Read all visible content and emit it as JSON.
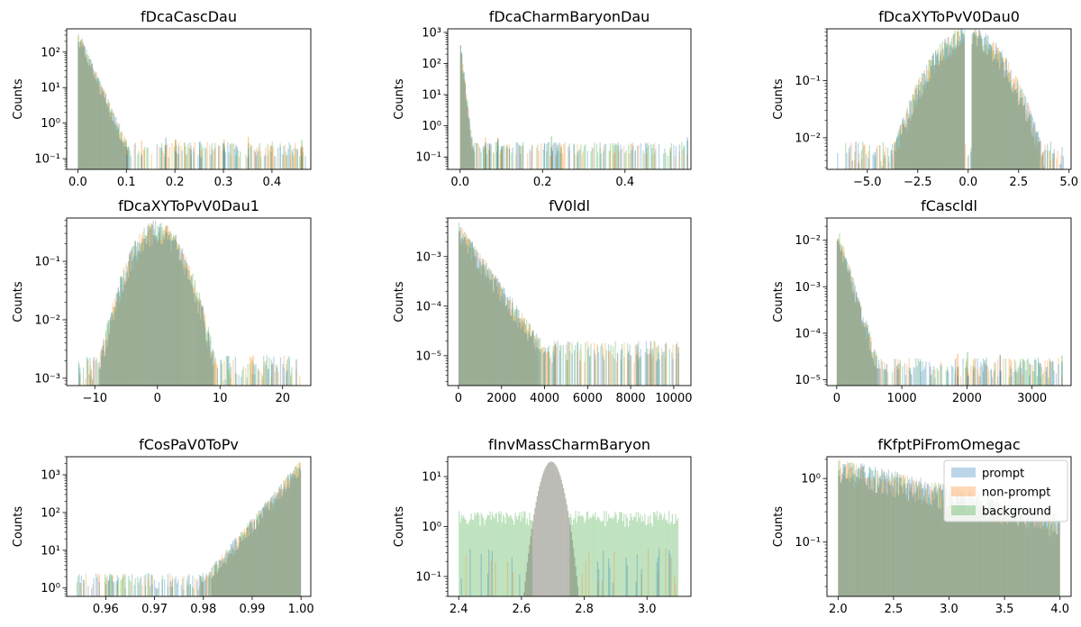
{
  "colors": {
    "prompt": "#1f77b4",
    "non-prompt": "#ff7f0e",
    "background": "#2ca02c",
    "overlap": "#9aab7c"
  },
  "chart_data": [
    {
      "type": "histogram",
      "title": "fDcaCascDau",
      "ylabel": "Counts",
      "yscale": "log",
      "xlim": [
        -0.023,
        0.48
      ],
      "ylim": [
        0.05,
        450
      ],
      "xticks": [
        {
          "v": 0.0,
          "label": "0.0"
        },
        {
          "v": 0.1,
          "label": "0.1"
        },
        {
          "v": 0.2,
          "label": "0.2"
        },
        {
          "v": 0.3,
          "label": "0.3"
        },
        {
          "v": 0.4,
          "label": "0.4"
        }
      ],
      "yticks": [
        {
          "v": 0.1,
          "label": "10⁻¹"
        },
        {
          "v": 1,
          "label": "10⁰"
        },
        {
          "v": 10,
          "label": "10¹"
        },
        {
          "v": 100,
          "label": "10²"
        }
      ],
      "shape": "decay",
      "range": [
        0,
        0.47
      ],
      "peak": 300,
      "decay": 0.014,
      "floor": 0.12,
      "tail": [
        0.1,
        0.13,
        0.18,
        0.2,
        0.25,
        0.3,
        0.35,
        0.46
      ],
      "bins": 200
    },
    {
      "type": "histogram",
      "title": "fDcaCharmBaryonDau",
      "ylabel": "Counts",
      "yscale": "log",
      "xlim": [
        -0.03,
        0.56
      ],
      "ylim": [
        0.04,
        1300
      ],
      "xticks": [
        {
          "v": 0.0,
          "label": "0.0"
        },
        {
          "v": 0.2,
          "label": "0.2"
        },
        {
          "v": 0.4,
          "label": "0.4"
        }
      ],
      "yticks": [
        {
          "v": 0.1,
          "label": "10⁻¹"
        },
        {
          "v": 1,
          "label": "10⁰"
        },
        {
          "v": 10,
          "label": "10¹"
        },
        {
          "v": 100,
          "label": "10²"
        },
        {
          "v": 1000,
          "label": "10³"
        }
      ],
      "shape": "decay",
      "range": [
        0,
        0.55
      ],
      "peak": 450,
      "decay": 0.004,
      "floor": 0.12,
      "tail": [
        0.06,
        0.07,
        0.09,
        0.1,
        0.22,
        0.55
      ],
      "bins": 200
    },
    {
      "type": "histogram",
      "title": "fDcaXYToPvV0Dau0",
      "ylabel": "Counts",
      "yscale": "log",
      "xlim": [
        -7.0,
        5.1
      ],
      "ylim": [
        0.0028,
        0.8
      ],
      "xticks": [
        {
          "v": -5.0,
          "label": "−5.0"
        },
        {
          "v": -2.5,
          "label": "−2.5"
        },
        {
          "v": 0.0,
          "label": "0.0"
        },
        {
          "v": 2.5,
          "label": "2.5"
        },
        {
          "v": 5.0,
          "label": "5.0"
        }
      ],
      "yticks": [
        {
          "v": 0.01,
          "label": "10⁻²"
        },
        {
          "v": 0.1,
          "label": "10⁻¹"
        }
      ],
      "shape": "dip",
      "range": [
        -6.5,
        4.8
      ],
      "peak": 0.6,
      "sigma": 1.2,
      "gap": 0.15,
      "floor": 0.0035,
      "bins": 200
    },
    {
      "type": "histogram",
      "title": "fDcaXYToPvV0Dau1",
      "ylabel": "Counts",
      "yscale": "log",
      "xlim": [
        -14.5,
        24.5
      ],
      "ylim": [
        0.00075,
        0.55
      ],
      "xticks": [
        {
          "v": -10,
          "label": "−10"
        },
        {
          "v": 0,
          "label": "0"
        },
        {
          "v": 10,
          "label": "10"
        },
        {
          "v": 20,
          "label": "20"
        }
      ],
      "yticks": [
        {
          "v": 0.001,
          "label": "10⁻³"
        },
        {
          "v": 0.01,
          "label": "10⁻²"
        },
        {
          "v": 0.1,
          "label": "10⁻¹"
        }
      ],
      "shape": "peak",
      "range": [
        -13,
        23
      ],
      "center": 0,
      "peak": 0.35,
      "sigma": 2.8,
      "floor": 0.001,
      "bins": 200
    },
    {
      "type": "histogram",
      "title": "fV0ldl",
      "ylabel": "Counts",
      "yscale": "log",
      "xlim": [
        -500,
        10800
      ],
      "ylim": [
        2.5e-06,
        0.006
      ],
      "xticks": [
        {
          "v": 0,
          "label": "0"
        },
        {
          "v": 2000,
          "label": "2000"
        },
        {
          "v": 4000,
          "label": "4000"
        },
        {
          "v": 6000,
          "label": "6000"
        },
        {
          "v": 8000,
          "label": "8000"
        },
        {
          "v": 10000,
          "label": "10000"
        }
      ],
      "yticks": [
        {
          "v": 1e-05,
          "label": "10⁻⁵"
        },
        {
          "v": 0.0001,
          "label": "10⁻⁴"
        },
        {
          "v": 0.001,
          "label": "10⁻³"
        }
      ],
      "shape": "decay",
      "range": [
        0,
        10300
      ],
      "peak": 0.0035,
      "decay": 700,
      "floor": 8e-06,
      "bins": 200
    },
    {
      "type": "histogram",
      "title": "fCascldl",
      "ylabel": "Counts",
      "yscale": "log",
      "xlim": [
        -150,
        3600
      ],
      "ylim": [
        7.5e-06,
        0.03
      ],
      "xticks": [
        {
          "v": 0,
          "label": "0"
        },
        {
          "v": 1000,
          "label": "1000"
        },
        {
          "v": 2000,
          "label": "2000"
        },
        {
          "v": 3000,
          "label": "3000"
        }
      ],
      "yticks": [
        {
          "v": 1e-05,
          "label": "10⁻⁵"
        },
        {
          "v": 0.0001,
          "label": "10⁻⁴"
        },
        {
          "v": 0.001,
          "label": "10⁻³"
        },
        {
          "v": 0.01,
          "label": "10⁻²"
        }
      ],
      "shape": "decay",
      "range": [
        0,
        3450
      ],
      "peak": 0.016,
      "decay": 95,
      "floor": 1.2e-05,
      "tail": [
        1850,
        2000,
        2500,
        3450
      ],
      "bins": 200
    },
    {
      "type": "histogram",
      "title": "fCosPaV0ToPv",
      "ylabel": "Counts",
      "yscale": "log",
      "xlim": [
        0.952,
        1.002
      ],
      "ylim": [
        0.6,
        3000
      ],
      "xticks": [
        {
          "v": 0.96,
          "label": "0.96"
        },
        {
          "v": 0.97,
          "label": "0.97"
        },
        {
          "v": 0.98,
          "label": "0.98"
        },
        {
          "v": 0.99,
          "label": "0.99"
        },
        {
          "v": 1.0,
          "label": "1.00"
        }
      ],
      "yticks": [
        {
          "v": 1,
          "label": "10⁰"
        },
        {
          "v": 10,
          "label": "10¹"
        },
        {
          "v": 100,
          "label": "10²"
        },
        {
          "v": 1000,
          "label": "10³"
        }
      ],
      "shape": "rise",
      "range": [
        0.954,
        1.0
      ],
      "peak": 1800,
      "decay": 0.0028,
      "floor": 1,
      "bins": 200
    },
    {
      "type": "histogram",
      "title": "fInvMassCharmBaryon",
      "ylabel": "Counts",
      "yscale": "log",
      "xlim": [
        2.365,
        3.14
      ],
      "ylim": [
        0.04,
        25
      ],
      "xticks": [
        {
          "v": 2.4,
          "label": "2.4"
        },
        {
          "v": 2.6,
          "label": "2.6"
        },
        {
          "v": 2.8,
          "label": "2.8"
        },
        {
          "v": 3.0,
          "label": "3.0"
        }
      ],
      "yticks": [
        {
          "v": 0.1,
          "label": "10⁻¹"
        },
        {
          "v": 1,
          "label": "10⁰"
        },
        {
          "v": 10,
          "label": "10¹"
        }
      ],
      "shape": "mass",
      "range": [
        2.4,
        3.1
      ],
      "center": 2.695,
      "peak": 20,
      "sigma": 0.025,
      "sideband_level": 1.8,
      "window": [
        2.635,
        2.755
      ],
      "bins": 200
    },
    {
      "type": "histogram",
      "title": "fKfptPiFromOmegac",
      "ylabel": "Counts",
      "yscale": "log",
      "xlim": [
        1.9,
        4.1
      ],
      "ylim": [
        0.014,
        2.2
      ],
      "xticks": [
        {
          "v": 2.0,
          "label": "2.0"
        },
        {
          "v": 2.5,
          "label": "2.5"
        },
        {
          "v": 3.0,
          "label": "3.0"
        },
        {
          "v": 3.5,
          "label": "3.5"
        },
        {
          "v": 4.0,
          "label": "4.0"
        }
      ],
      "yticks": [
        {
          "v": 0.1,
          "label": "10⁻¹"
        },
        {
          "v": 1,
          "label": "10⁰"
        }
      ],
      "shape": "slope",
      "range": [
        2.0,
        4.0
      ],
      "start": 1.5,
      "end": 0.2,
      "bins": 200,
      "legend": {
        "placement": "upper right",
        "entries": [
          "prompt",
          "non-prompt",
          "background"
        ]
      }
    }
  ]
}
